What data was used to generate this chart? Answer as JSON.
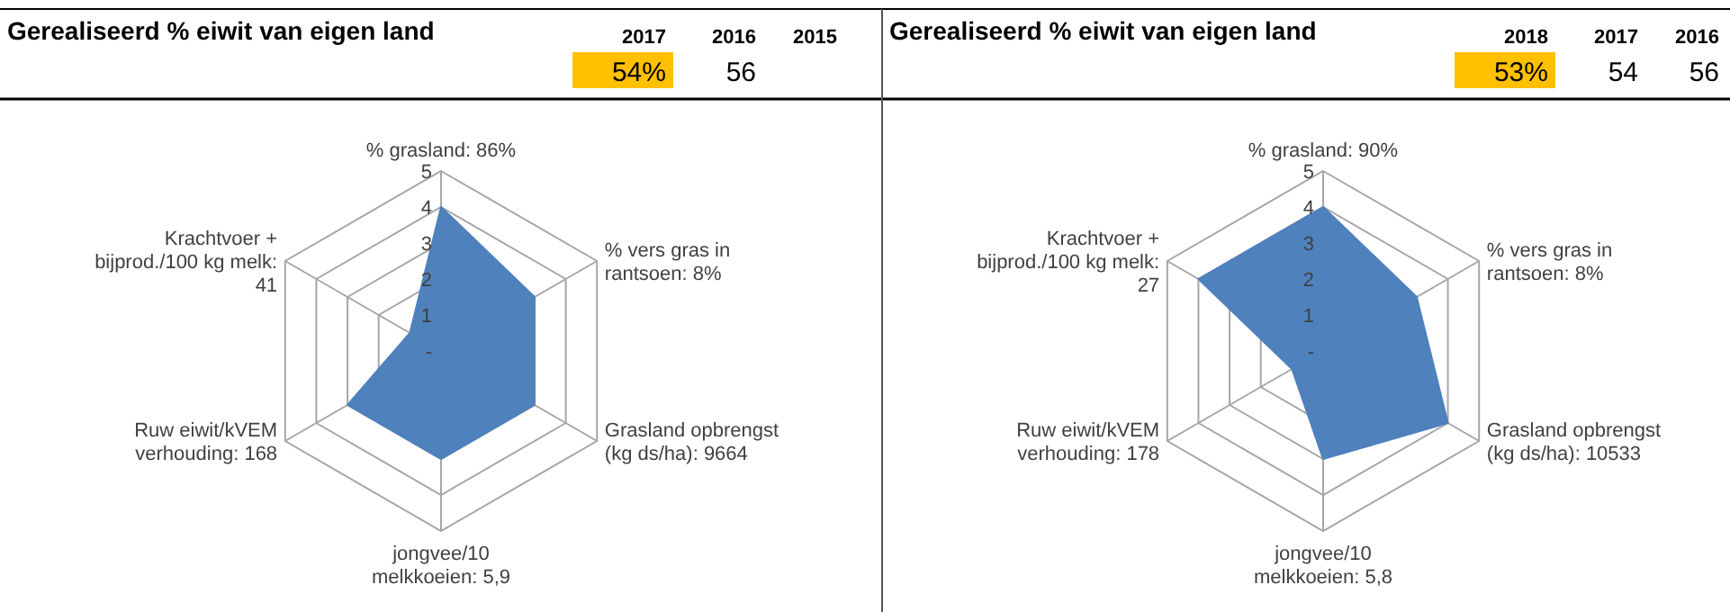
{
  "chart_data": [
    {
      "type": "other",
      "title": "Gerealiseerd % eiwit van eigen land",
      "categories": [
        "2017",
        "2016",
        "2015"
      ],
      "value_labels": [
        "54%",
        "56",
        null
      ],
      "colors": [
        "#ffc000",
        null,
        null
      ]
    },
    {
      "type": "radar",
      "categories": [
        "% grasland: 86%",
        "% vers gras in rantsoen: 8%",
        "Grasland opbrengst (kg ds/ha): 9664",
        "jongvee/10 melkkoeien: 5,9",
        "Ruw eiwit/kVEM verhouding: 168",
        "Krachtvoer + bijprod./100 kg melk: 41"
      ],
      "ylim": [
        0,
        5
      ],
      "yticks": [
        {
          "value": 0,
          "label": "-"
        },
        1,
        2,
        3,
        4,
        5
      ],
      "series": [
        {
          "color": "#4f81bd",
          "values": [
            4,
            3,
            3,
            3,
            3,
            1
          ]
        }
      ]
    },
    {
      "type": "other",
      "title": "Gerealiseerd % eiwit van eigen land",
      "categories": [
        "2018",
        "2017",
        "2016"
      ],
      "value_labels": [
        "53%",
        "54",
        "56"
      ],
      "colors": [
        "#ffc000",
        null,
        null
      ]
    },
    {
      "type": "radar",
      "categories": [
        "% grasland: 90%",
        "% vers gras in rantsoen: 8%",
        "Grasland opbrengst (kg ds/ha): 10533",
        "jongvee/10 melkkoeien: 5,8",
        "Ruw eiwit/kVEM verhouding: 178",
        "Krachtvoer + bijprod./100 kg melk: 27"
      ],
      "ylim": [
        0,
        5
      ],
      "yticks": [
        {
          "value": 0,
          "label": "-"
        },
        1,
        2,
        3,
        4,
        5
      ],
      "series": [
        {
          "color": "#4f81bd",
          "values": [
            4,
            3,
            4,
            3,
            1,
            4
          ]
        }
      ]
    }
  ]
}
